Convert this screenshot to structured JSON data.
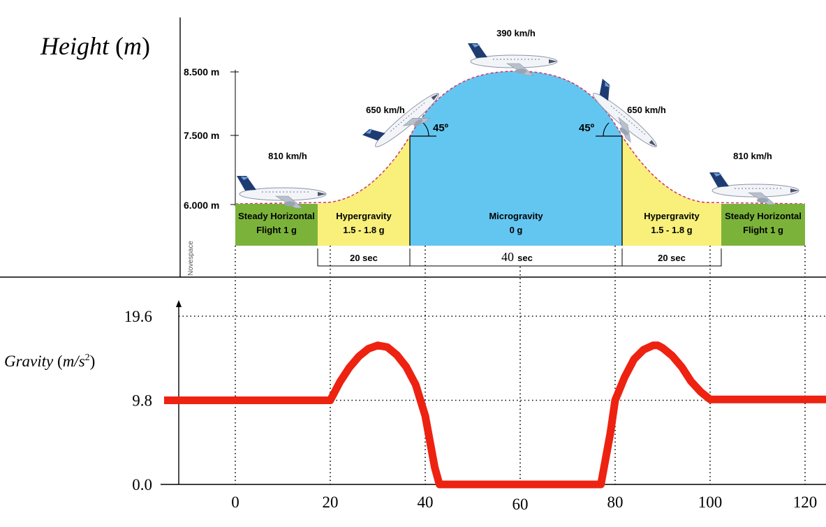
{
  "top_panel": {
    "ylabel_word": "Height",
    "ylabel_unit": "m",
    "y_ticks": [
      "6.000 m",
      "7.500 m",
      "8.500 m"
    ],
    "speeds": [
      "810 km/h",
      "650 km/h",
      "390 km/h",
      "650 km/h",
      "810 km/h"
    ],
    "angles": [
      "45º",
      "45º"
    ],
    "credit": "Novespace",
    "phases": [
      {
        "title": "Steady Horizontal",
        "sub": "Flight 1 g",
        "color": "#7bb33a"
      },
      {
        "title": "Hypergravity",
        "sub": "1.5 - 1.8 g",
        "color": "#f8f07a"
      },
      {
        "title": "Microgravity",
        "sub": "0 g",
        "color": "#63c6f0"
      },
      {
        "title": "Hypergravity",
        "sub": "1.5 - 1.8 g",
        "color": "#f8f07a"
      },
      {
        "title": "Steady Horizontal",
        "sub": "Flight 1 g",
        "color": "#7bb33a"
      }
    ],
    "durations": [
      {
        "num": "",
        "unit": "20 sec"
      },
      {
        "num": "40",
        "unit": "sec"
      },
      {
        "num": "",
        "unit": "20 sec"
      }
    ]
  },
  "bottom_panel": {
    "ylabel_word": "Gravity",
    "ylabel_unit_base": "m/s",
    "ylabel_unit_exp": "2",
    "line_color": "#ee2211"
  },
  "chart_data": {
    "type": "line",
    "xlabel": "",
    "ylabel": "Gravity (m/s2)",
    "x_ticks": [
      0,
      20,
      40,
      60,
      80,
      100,
      120
    ],
    "y_ticks": [
      0.0,
      9.8,
      19.6
    ],
    "y_tick_labels": [
      "0.0",
      "9.8",
      "19.6"
    ],
    "xlim": [
      -15,
      125
    ],
    "ylim": [
      0,
      19.6
    ],
    "series": [
      {
        "x": [
          -15,
          20,
          22,
          24,
          26,
          28,
          30,
          32,
          34,
          36,
          38,
          40,
          41,
          42,
          43,
          77,
          78,
          79,
          80,
          82,
          84,
          86,
          88,
          89,
          90,
          92,
          94,
          96,
          98,
          100,
          125
        ],
        "y": [
          9.8,
          9.8,
          11.9,
          13.6,
          14.9,
          15.8,
          16.2,
          16.0,
          15.1,
          13.7,
          11.6,
          8.0,
          5.0,
          2.0,
          0.0,
          0.0,
          3.0,
          6.0,
          9.8,
          12.5,
          14.6,
          15.7,
          16.2,
          16.2,
          15.9,
          15.0,
          13.7,
          12.0,
          10.8,
          9.9,
          9.9
        ]
      }
    ]
  }
}
